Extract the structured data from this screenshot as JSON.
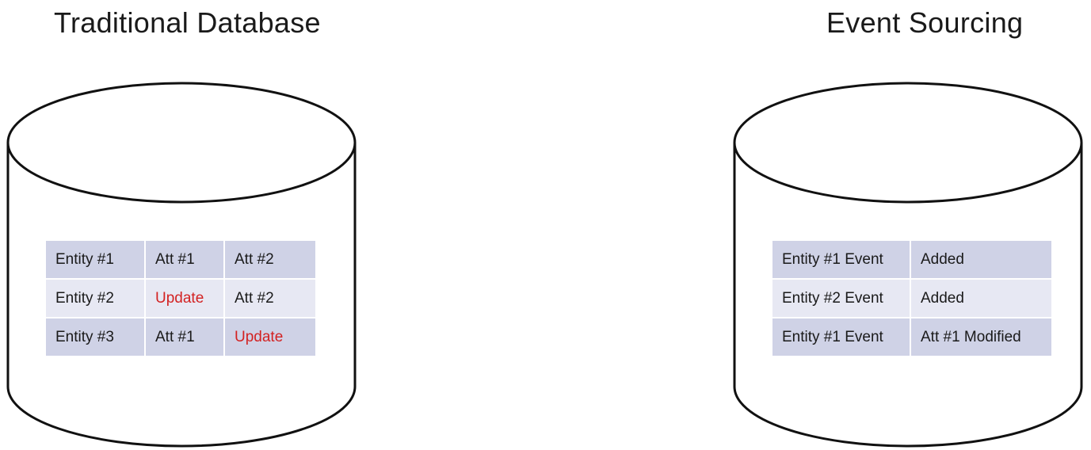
{
  "traditional": {
    "title": "Traditional Database",
    "rows": [
      {
        "entity": "Entity #1",
        "att1": "Att #1",
        "att2": "Att #2"
      },
      {
        "entity": "Entity #2",
        "att1": "Update",
        "att2": "Att #2"
      },
      {
        "entity": "Entity #3",
        "att1": "Att #1",
        "att2": "Update"
      }
    ]
  },
  "event_sourcing": {
    "title": "Event Sourcing",
    "rows": [
      {
        "event": "Entity #1 Event",
        "action": "Added"
      },
      {
        "event": "Entity #2 Event",
        "action": "Added"
      },
      {
        "event": "Entity #1 Event",
        "action": "Att #1 Modified"
      }
    ]
  },
  "colors": {
    "row_dark": "#cfd2e6",
    "row_light": "#e7e8f3",
    "update_text": "#d32222",
    "outline": "#111111"
  }
}
